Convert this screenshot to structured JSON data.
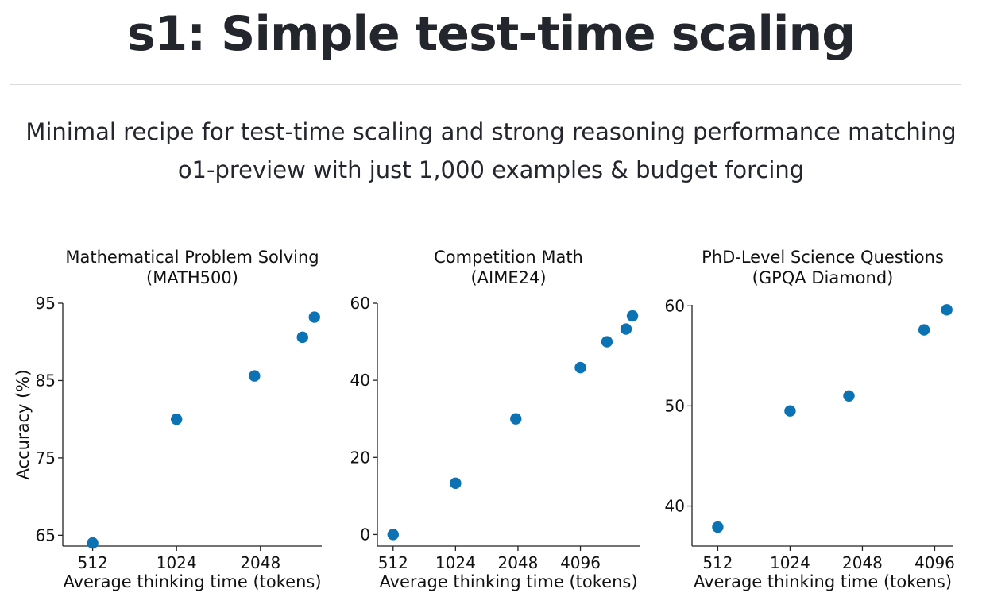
{
  "page": {
    "title": "s1: Simple test-time scaling",
    "subtitle_lines": [
      "Minimal recipe for test-time scaling and strong reasoning performance matching",
      "o1-preview with just 1,000 examples & budget forcing"
    ]
  },
  "colors": {
    "marker": "#0b72b4",
    "axis": "#222222",
    "text": "#111111"
  },
  "chart_data": [
    {
      "type": "scatter",
      "title": [
        "Mathematical Problem Solving",
        "(MATH500)"
      ],
      "xlabel": "Average thinking time (tokens)",
      "ylabel": "Accuracy (%)",
      "xscale": "log2",
      "xticks": [
        512,
        1024,
        2048
      ],
      "yticks": [
        65,
        75,
        85,
        95
      ],
      "ylim": [
        63.6,
        95
      ],
      "xlim": [
        400,
        3400
      ],
      "points": [
        {
          "x": 512,
          "y": 64.0
        },
        {
          "x": 1024,
          "y": 80.0
        },
        {
          "x": 1950,
          "y": 85.6
        },
        {
          "x": 2900,
          "y": 90.6
        },
        {
          "x": 3200,
          "y": 93.2
        }
      ]
    },
    {
      "type": "scatter",
      "title": [
        "Competition Math",
        "(AIME24)"
      ],
      "xlabel": "Average thinking time (tokens)",
      "ylabel": "",
      "xscale": "log2",
      "xticks": [
        512,
        1024,
        2048,
        4096
      ],
      "yticks": [
        0,
        20,
        40,
        60
      ],
      "ylim": [
        -3,
        60
      ],
      "xlim": [
        430,
        7900
      ],
      "points": [
        {
          "x": 512,
          "y": 0.0
        },
        {
          "x": 1024,
          "y": 13.3
        },
        {
          "x": 2000,
          "y": 30.0
        },
        {
          "x": 4096,
          "y": 43.3
        },
        {
          "x": 5500,
          "y": 50.0
        },
        {
          "x": 6800,
          "y": 53.3
        },
        {
          "x": 7300,
          "y": 56.7
        }
      ]
    },
    {
      "type": "scatter",
      "title": [
        "PhD-Level Science Questions",
        "(GPQA Diamond)"
      ],
      "xlabel": "Average thinking time (tokens)",
      "ylabel": "",
      "xscale": "log2",
      "xticks": [
        512,
        1024,
        2048,
        4096
      ],
      "yticks": [
        40,
        50,
        60
      ],
      "ylim": [
        36.0,
        60.1
      ],
      "xlim": [
        400,
        4900
      ],
      "points": [
        {
          "x": 512,
          "y": 37.9
        },
        {
          "x": 1024,
          "y": 49.5
        },
        {
          "x": 1800,
          "y": 51.0
        },
        {
          "x": 3700,
          "y": 57.6
        },
        {
          "x": 4600,
          "y": 59.6
        }
      ]
    }
  ]
}
